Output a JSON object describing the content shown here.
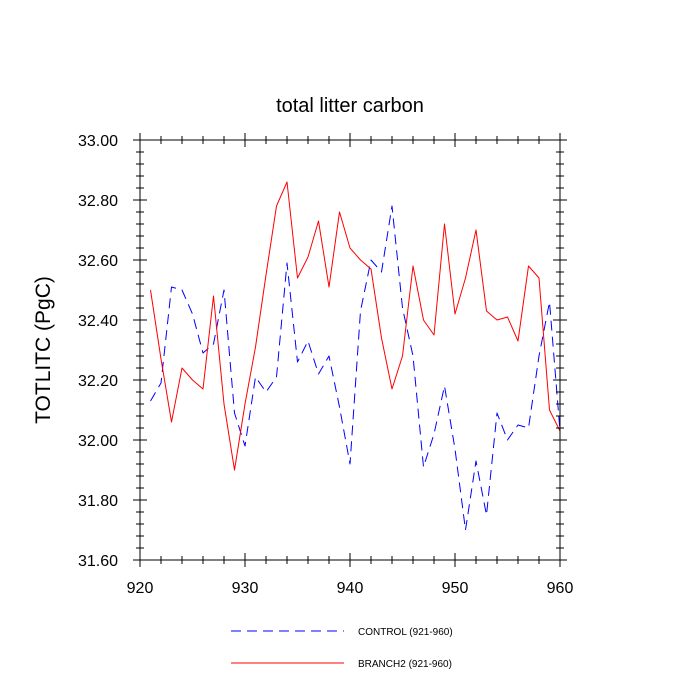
{
  "chart_data": {
    "type": "line",
    "title": "total litter carbon",
    "xlabel": "",
    "ylabel": "TOTLITC  (PgC)",
    "xlim": [
      920,
      960
    ],
    "ylim": [
      31.6,
      33.0
    ],
    "x_ticks": [
      920,
      930,
      940,
      950,
      960
    ],
    "y_ticks": [
      31.6,
      31.8,
      32.0,
      32.2,
      32.4,
      32.6,
      32.8,
      33.0
    ],
    "x_tick_labels": [
      "920",
      "930",
      "940",
      "950",
      "960"
    ],
    "y_tick_labels": [
      "31.60",
      "31.80",
      "32.00",
      "32.20",
      "32.40",
      "32.60",
      "32.80",
      "33.00"
    ],
    "grid": false,
    "legend_position": "bottom",
    "x": [
      921,
      922,
      923,
      924,
      925,
      926,
      927,
      928,
      929,
      930,
      931,
      932,
      933,
      934,
      935,
      936,
      937,
      938,
      939,
      940,
      941,
      942,
      943,
      944,
      945,
      946,
      947,
      948,
      949,
      950,
      951,
      952,
      953,
      954,
      955,
      956,
      957,
      958,
      959,
      960
    ],
    "series": [
      {
        "name": "CONTROL (921-960)",
        "color": "#0000ff",
        "dash": "dashed",
        "values": [
          32.13,
          32.19,
          32.51,
          32.5,
          32.42,
          32.29,
          32.32,
          32.5,
          32.09,
          31.98,
          32.21,
          32.16,
          32.21,
          32.59,
          32.26,
          32.33,
          32.22,
          32.28,
          32.11,
          31.92,
          32.43,
          32.6,
          32.56,
          32.78,
          32.44,
          32.28,
          31.91,
          32.02,
          32.18,
          31.97,
          31.7,
          31.93,
          31.75,
          32.09,
          32.0,
          32.05,
          32.04,
          32.28,
          32.46,
          32.03
        ]
      },
      {
        "name": "BRANCH2 (921-960)",
        "color": "#ff0000",
        "dash": "solid",
        "values": [
          32.5,
          32.27,
          32.06,
          32.24,
          32.2,
          32.17,
          32.48,
          32.12,
          31.9,
          32.12,
          32.31,
          32.55,
          32.78,
          32.86,
          32.54,
          32.61,
          32.73,
          32.51,
          32.76,
          32.64,
          32.6,
          32.57,
          32.34,
          32.17,
          32.28,
          32.58,
          32.4,
          32.35,
          32.72,
          32.42,
          32.54,
          32.7,
          32.43,
          32.4,
          32.41,
          32.33,
          32.58,
          32.54,
          32.1,
          32.03
        ]
      }
    ]
  }
}
